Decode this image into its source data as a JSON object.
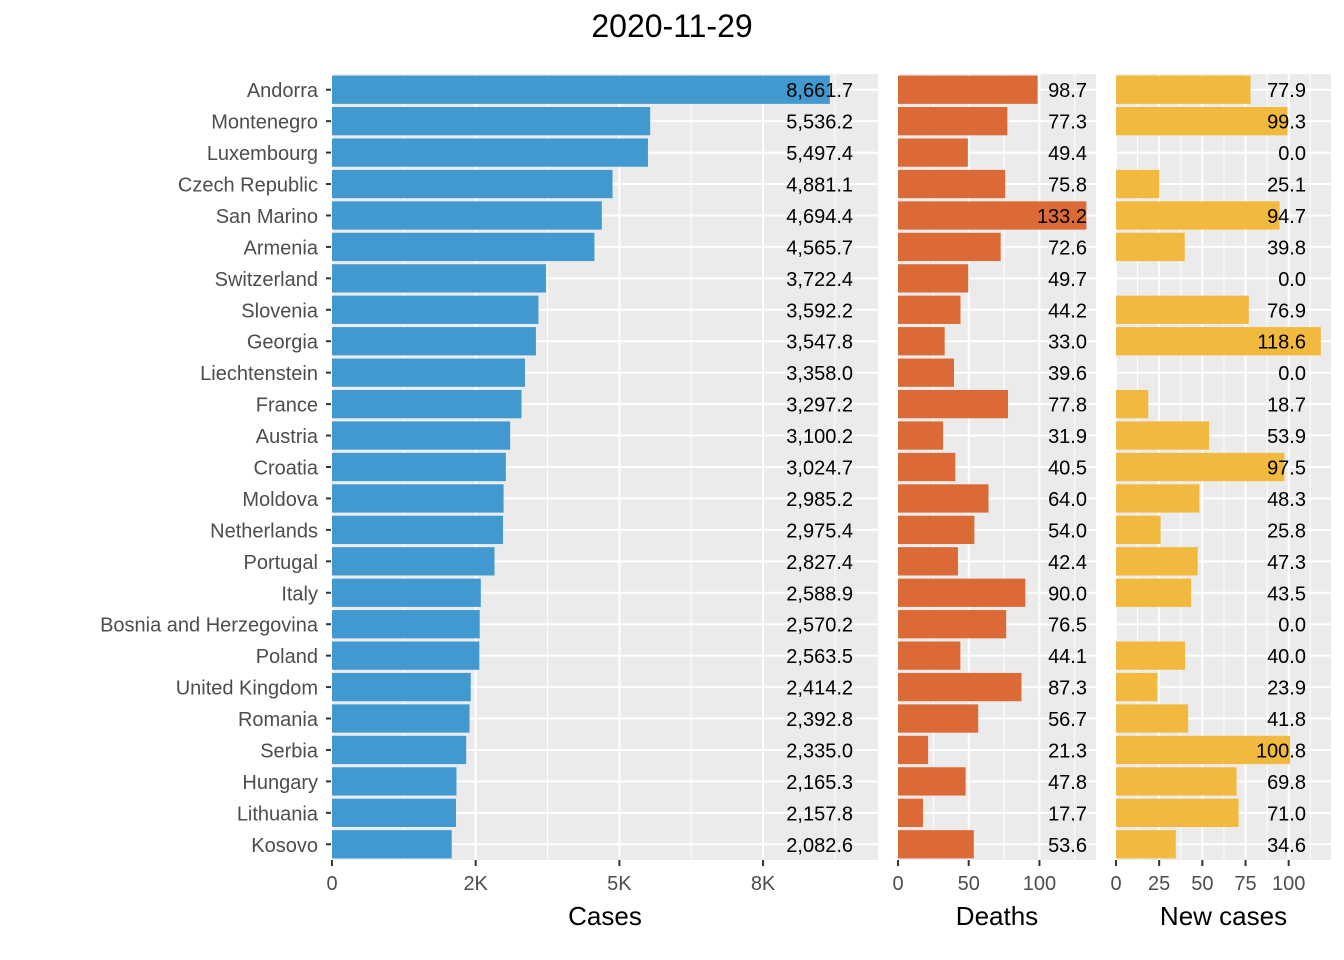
{
  "title": "2020-11-29",
  "colors": {
    "cases": "#4299cf",
    "deaths": "#dc6a37",
    "new_cases": "#f1b93d",
    "panel_bg": "#ebebeb",
    "grid": "#ffffff",
    "text": "#000000",
    "axis_text": "#4d4d4d"
  },
  "chart_data": {
    "type": "bar",
    "orientation": "horizontal",
    "categories": [
      "Andorra",
      "Montenegro",
      "Luxembourg",
      "Czech Republic",
      "San Marino",
      "Armenia",
      "Switzerland",
      "Slovenia",
      "Georgia",
      "Liechtenstein",
      "France",
      "Austria",
      "Croatia",
      "Moldova",
      "Netherlands",
      "Portugal",
      "Italy",
      "Bosnia and Herzegovina",
      "Poland",
      "United Kingdom",
      "Romania",
      "Serbia",
      "Hungary",
      "Lithuania",
      "Kosovo"
    ],
    "panels": [
      {
        "name": "Cases",
        "xlabel": "Cases",
        "color": "#4299cf",
        "xlim": [
          0,
          9500
        ],
        "ticks": [
          {
            "value": 0,
            "label": "0"
          },
          {
            "value": 2500,
            "label": "2K"
          },
          {
            "value": 5000,
            "label": "5K"
          },
          {
            "value": 7500,
            "label": "8K"
          }
        ],
        "values": [
          8661.7,
          5536.2,
          5497.4,
          4881.1,
          4694.4,
          4565.7,
          3722.4,
          3592.2,
          3547.8,
          3358.0,
          3297.2,
          3100.2,
          3024.7,
          2985.2,
          2975.4,
          2827.4,
          2588.9,
          2570.2,
          2563.5,
          2414.2,
          2392.8,
          2335.0,
          2165.3,
          2157.8,
          2082.6
        ],
        "labels": [
          "8,661.7",
          "5,536.2",
          "5,497.4",
          "4,881.1",
          "4,694.4",
          "4,565.7",
          "3,722.4",
          "3,592.2",
          "3,547.8",
          "3,358.0",
          "3,297.2",
          "3,100.2",
          "3,024.7",
          "2,985.2",
          "2,975.4",
          "2,827.4",
          "2,588.9",
          "2,570.2",
          "2,563.5",
          "2,414.2",
          "2,392.8",
          "2,335.0",
          "2,165.3",
          "2,157.8",
          "2,082.6"
        ]
      },
      {
        "name": "Deaths",
        "xlabel": "Deaths",
        "color": "#dc6a37",
        "xlim": [
          0,
          140
        ],
        "ticks": [
          {
            "value": 0,
            "label": "0"
          },
          {
            "value": 50,
            "label": "50"
          },
          {
            "value": 100,
            "label": "100"
          }
        ],
        "values": [
          98.7,
          77.3,
          49.4,
          75.8,
          133.2,
          72.6,
          49.7,
          44.2,
          33.0,
          39.6,
          77.8,
          31.9,
          40.5,
          64.0,
          54.0,
          42.4,
          90.0,
          76.5,
          44.1,
          87.3,
          56.7,
          21.3,
          47.8,
          17.7,
          53.6
        ],
        "labels": [
          "98.7",
          "77.3",
          "49.4",
          "75.8",
          "133.2",
          "72.6",
          "49.7",
          "44.2",
          "33.0",
          "39.6",
          "77.8",
          "31.9",
          "40.5",
          "64.0",
          "54.0",
          "42.4",
          "90.0",
          "76.5",
          "44.1",
          "87.3",
          "56.7",
          "21.3",
          "47.8",
          "17.7",
          "53.6"
        ]
      },
      {
        "name": "New cases",
        "xlabel": "New cases",
        "color": "#f1b93d",
        "xlim": [
          0,
          124.5
        ],
        "ticks": [
          {
            "value": 0,
            "label": "0"
          },
          {
            "value": 25,
            "label": "25"
          },
          {
            "value": 50,
            "label": "50"
          },
          {
            "value": 75,
            "label": "75"
          },
          {
            "value": 100,
            "label": "100"
          }
        ],
        "values": [
          77.9,
          99.3,
          0.0,
          25.1,
          94.7,
          39.8,
          0.0,
          76.9,
          118.6,
          0.0,
          18.7,
          53.9,
          97.5,
          48.3,
          25.8,
          47.3,
          43.5,
          0.0,
          40.0,
          23.9,
          41.8,
          100.8,
          69.8,
          71.0,
          34.6
        ],
        "labels": [
          "77.9",
          "99.3",
          "0.0",
          "25.1",
          "94.7",
          "39.8",
          "0.0",
          "76.9",
          "118.6",
          "0.0",
          "18.7",
          "53.9",
          "97.5",
          "48.3",
          "25.8",
          "47.3",
          "43.5",
          "0.0",
          "40.0",
          "23.9",
          "41.8",
          "100.8",
          "69.8",
          "71.0",
          "34.6"
        ]
      }
    ],
    "grid": true,
    "legend": "none"
  }
}
